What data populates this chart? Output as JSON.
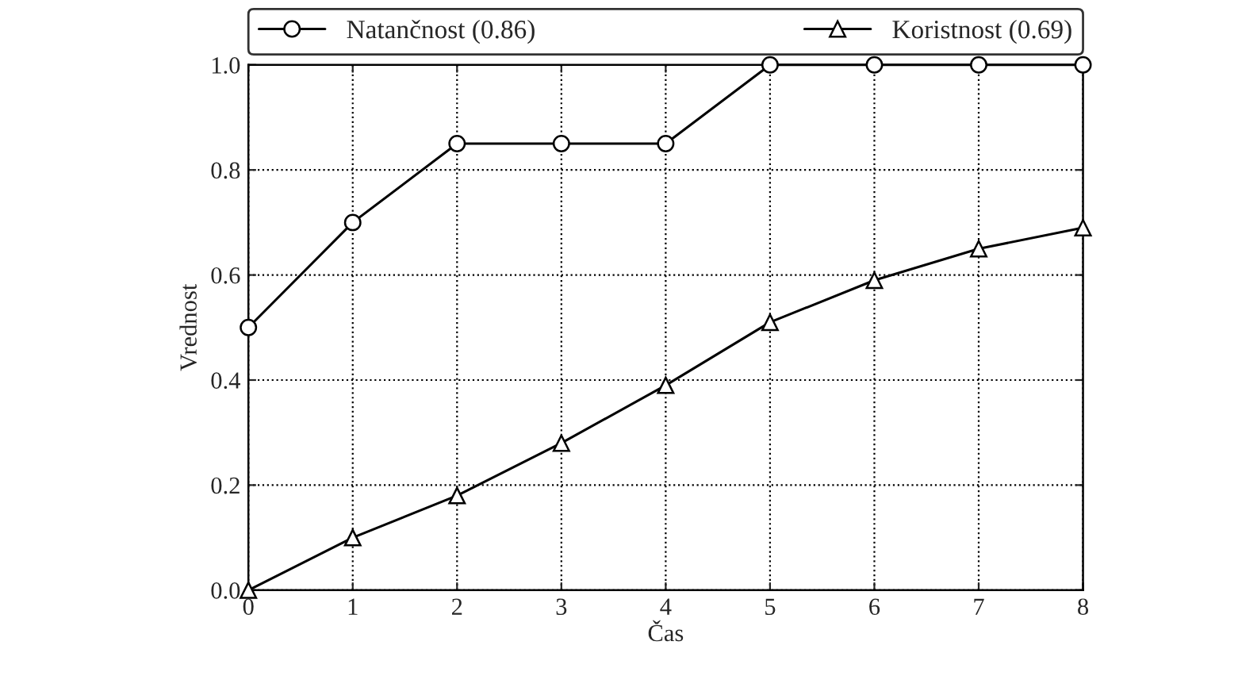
{
  "chart_data": {
    "type": "line",
    "xlabel": "Čas",
    "ylabel": "Vrednost",
    "x": [
      0,
      1,
      2,
      3,
      4,
      5,
      6,
      7,
      8
    ],
    "series": [
      {
        "name": "Natančnost (0.86)",
        "color": "#000000",
        "marker": "circle",
        "values": [
          0.5,
          0.7,
          0.85,
          0.85,
          0.85,
          1.0,
          1.0,
          1.0,
          1.0
        ]
      },
      {
        "name": "Koristnost (0.69)",
        "color": "#000000",
        "marker": "triangle",
        "values": [
          0.0,
          0.1,
          0.18,
          0.28,
          0.39,
          0.51,
          0.59,
          0.65,
          0.69
        ]
      }
    ],
    "xlim": [
      0,
      8
    ],
    "xticks": [
      0,
      1,
      2,
      3,
      4,
      5,
      6,
      7,
      8
    ],
    "ylim": [
      0,
      1
    ],
    "yticks": [
      {
        "value": 0,
        "label": "0.0"
      },
      {
        "value": 0.2,
        "label": "0.2"
      },
      {
        "value": 0.4,
        "label": "0.4"
      },
      {
        "value": 0.6,
        "label": "0.6"
      },
      {
        "value": 0.8,
        "label": "0.8"
      },
      {
        "value": 1,
        "label": "1.0"
      }
    ],
    "grid": true,
    "legend": "top",
    "line_style": "solid"
  }
}
